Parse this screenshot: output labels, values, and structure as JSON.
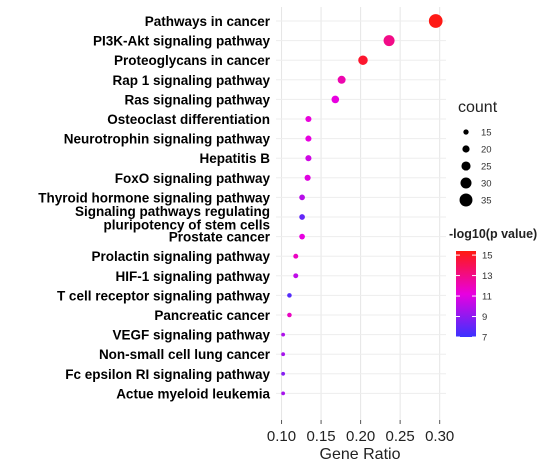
{
  "chart_data": {
    "type": "scatter",
    "title": "",
    "xlabel": "Gene Ratio",
    "ylabel": "",
    "xlim": [
      0.093,
      0.308
    ],
    "xticks": [
      0.1,
      0.15,
      0.2,
      0.25,
      0.3
    ],
    "xtick_labels": [
      "0.10",
      "0.15",
      "0.20",
      "0.25",
      "0.30"
    ],
    "grid": true,
    "legend_position": "right",
    "pathways": [
      {
        "label": [
          "Pathways in cancer"
        ],
        "x": 0.295,
        "count": 37,
        "neglog10p": 15.3
      },
      {
        "label": [
          "PI3K-Akt signaling pathway"
        ],
        "x": 0.236,
        "count": 30,
        "neglog10p": 13.0
      },
      {
        "label": [
          "Proteoglycans in cancer"
        ],
        "x": 0.203,
        "count": 26,
        "neglog10p": 14.8
      },
      {
        "label": [
          "Rap 1 signaling pathway"
        ],
        "x": 0.176,
        "count": 22,
        "neglog10p": 12.2
      },
      {
        "label": [
          "Ras signaling pathway"
        ],
        "x": 0.168,
        "count": 21,
        "neglog10p": 11.2
      },
      {
        "label": [
          "Osteoclast differentiation"
        ],
        "x": 0.134,
        "count": 17,
        "neglog10p": 11.3
      },
      {
        "label": [
          "Neurotrophin signaling pathway"
        ],
        "x": 0.134,
        "count": 17,
        "neglog10p": 11.2
      },
      {
        "label": [
          "Hepatitis B"
        ],
        "x": 0.134,
        "count": 17,
        "neglog10p": 10.6
      },
      {
        "label": [
          "FoxO signaling pathway"
        ],
        "x": 0.133,
        "count": 17,
        "neglog10p": 11.0
      },
      {
        "label": [
          "Thyroid hormone signaling pathway"
        ],
        "x": 0.126,
        "count": 16,
        "neglog10p": 10.0
      },
      {
        "label": [
          "Signaling pathways regulating",
          "pluripotency of stem cells"
        ],
        "x": 0.126,
        "count": 16,
        "neglog10p": 8.0
      },
      {
        "label": [
          "Prostate cancer"
        ],
        "x": 0.126,
        "count": 16,
        "neglog10p": 11.2
      },
      {
        "label": [
          "Prolactin signaling pathway"
        ],
        "x": 0.118,
        "count": 14,
        "neglog10p": 11.8
      },
      {
        "label": [
          "HIF-1 signaling pathway"
        ],
        "x": 0.118,
        "count": 14,
        "neglog10p": 10.2
      },
      {
        "label": [
          "T cell receptor signaling pathway"
        ],
        "x": 0.11,
        "count": 13,
        "neglog10p": 7.6
      },
      {
        "label": [
          "Pancreatic cancer"
        ],
        "x": 0.11,
        "count": 13,
        "neglog10p": 11.8
      },
      {
        "label": [
          "VEGF signaling pathway"
        ],
        "x": 0.102,
        "count": 11,
        "neglog10p": 9.8
      },
      {
        "label": [
          "Non-small cell lung cancer"
        ],
        "x": 0.102,
        "count": 11,
        "neglog10p": 9.6
      },
      {
        "label": [
          "Fc epsilon RI signaling pathway"
        ],
        "x": 0.102,
        "count": 11,
        "neglog10p": 8.8
      },
      {
        "label": [
          "Actue myeloid leukemia"
        ],
        "x": 0.102,
        "count": 11,
        "neglog10p": 9.6
      }
    ],
    "size_legend": {
      "title": "count",
      "values": [
        15,
        20,
        25,
        30,
        35
      ]
    },
    "color_legend": {
      "title": "-log10(p value)",
      "min": 7,
      "max": 15.4,
      "ticks": [
        7,
        9,
        11,
        13,
        15
      ],
      "tick_labels": [
        "7",
        "9",
        "11",
        "13",
        "15"
      ],
      "low_color": "#3b32ff",
      "mid_color": "#e800e0",
      "high_color": "#ff1a10"
    }
  }
}
